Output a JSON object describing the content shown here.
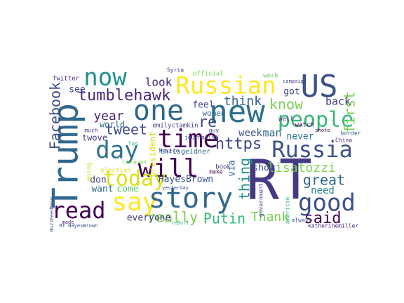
{
  "chart_data": {
    "type": "wordcloud",
    "words": [
      "Trump",
      "RT",
      "new",
      "US",
      "Russian",
      "now",
      "one",
      "time",
      "people",
      "Russia",
      "day",
      "will",
      "today",
      "say",
      "story",
      "good",
      "read",
      "tumblehawk",
      "https",
      "Facebook",
      "tweet",
      "year",
      "look",
      "know",
      "first",
      "think",
      "lisatozzi",
      "great",
      "need",
      "Thank",
      "said",
      "Putin",
      "really",
      "thing",
      "via",
      "back",
      "re",
      "feel",
      "women",
      "week",
      "man",
      "never",
      "show",
      "got",
      "HayesBrown",
      "everyone",
      "come",
      "want",
      "don",
      "world",
      "twove",
      "see",
      "emilyctamkin",
      "chrisgeidner",
      "president",
      "Twitter",
      "Mexico",
      "Syria",
      "official",
      "work",
      "campaign",
      "election",
      "going",
      "much",
      "made",
      "journalist",
      "border",
      "China",
      "photo",
      "watch",
      "always",
      "guy",
      "book",
      "make",
      "government",
      "american",
      "Yes",
      "report",
      "caravan",
      "well",
      "yesterday",
      "BuzzFeedNews",
      "katherinemiller",
      "RT HayesBrown"
    ]
  }
}
